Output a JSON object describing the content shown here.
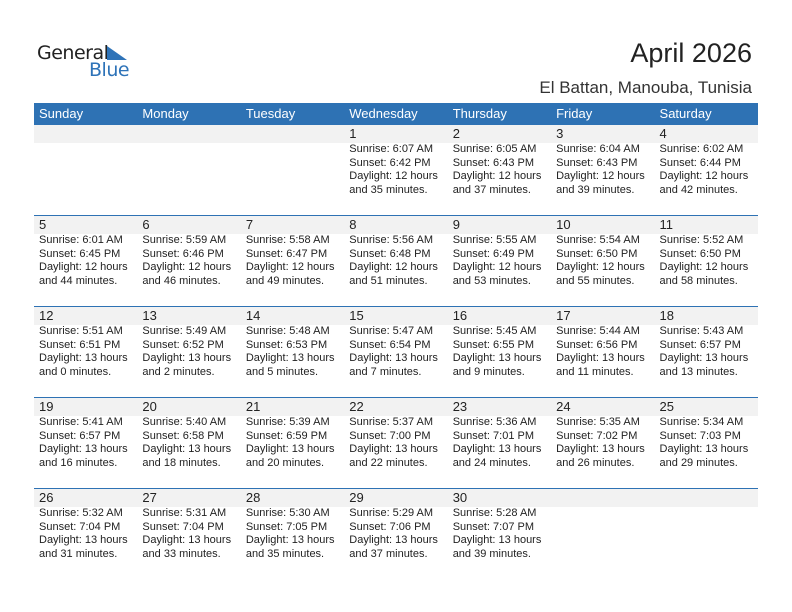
{
  "header": {
    "logo_general": "General",
    "logo_blue": "Blue",
    "title": "April 2026",
    "location": "El Battan, Manouba, Tunisia",
    "accent": "#2e72b4"
  },
  "weekdays": [
    "Sunday",
    "Monday",
    "Tuesday",
    "Wednesday",
    "Thursday",
    "Friday",
    "Saturday"
  ],
  "weeks": [
    {
      "days": [
        null,
        null,
        null,
        {
          "day": "1",
          "sunrise": "Sunrise: 6:07 AM",
          "sunset": "Sunset: 6:42 PM",
          "daylight": "Daylight: 12 hours",
          "minutes": "and 35 minutes."
        },
        {
          "day": "2",
          "sunrise": "Sunrise: 6:05 AM",
          "sunset": "Sunset: 6:43 PM",
          "daylight": "Daylight: 12 hours",
          "minutes": "and 37 minutes."
        },
        {
          "day": "3",
          "sunrise": "Sunrise: 6:04 AM",
          "sunset": "Sunset: 6:43 PM",
          "daylight": "Daylight: 12 hours",
          "minutes": "and 39 minutes."
        },
        {
          "day": "4",
          "sunrise": "Sunrise: 6:02 AM",
          "sunset": "Sunset: 6:44 PM",
          "daylight": "Daylight: 12 hours",
          "minutes": "and 42 minutes."
        }
      ]
    },
    {
      "days": [
        {
          "day": "5",
          "sunrise": "Sunrise: 6:01 AM",
          "sunset": "Sunset: 6:45 PM",
          "daylight": "Daylight: 12 hours",
          "minutes": "and 44 minutes."
        },
        {
          "day": "6",
          "sunrise": "Sunrise: 5:59 AM",
          "sunset": "Sunset: 6:46 PM",
          "daylight": "Daylight: 12 hours",
          "minutes": "and 46 minutes."
        },
        {
          "day": "7",
          "sunrise": "Sunrise: 5:58 AM",
          "sunset": "Sunset: 6:47 PM",
          "daylight": "Daylight: 12 hours",
          "minutes": "and 49 minutes."
        },
        {
          "day": "8",
          "sunrise": "Sunrise: 5:56 AM",
          "sunset": "Sunset: 6:48 PM",
          "daylight": "Daylight: 12 hours",
          "minutes": "and 51 minutes."
        },
        {
          "day": "9",
          "sunrise": "Sunrise: 5:55 AM",
          "sunset": "Sunset: 6:49 PM",
          "daylight": "Daylight: 12 hours",
          "minutes": "and 53 minutes."
        },
        {
          "day": "10",
          "sunrise": "Sunrise: 5:54 AM",
          "sunset": "Sunset: 6:50 PM",
          "daylight": "Daylight: 12 hours",
          "minutes": "and 55 minutes."
        },
        {
          "day": "11",
          "sunrise": "Sunrise: 5:52 AM",
          "sunset": "Sunset: 6:50 PM",
          "daylight": "Daylight: 12 hours",
          "minutes": "and 58 minutes."
        }
      ]
    },
    {
      "days": [
        {
          "day": "12",
          "sunrise": "Sunrise: 5:51 AM",
          "sunset": "Sunset: 6:51 PM",
          "daylight": "Daylight: 13 hours",
          "minutes": "and 0 minutes."
        },
        {
          "day": "13",
          "sunrise": "Sunrise: 5:49 AM",
          "sunset": "Sunset: 6:52 PM",
          "daylight": "Daylight: 13 hours",
          "minutes": "and 2 minutes."
        },
        {
          "day": "14",
          "sunrise": "Sunrise: 5:48 AM",
          "sunset": "Sunset: 6:53 PM",
          "daylight": "Daylight: 13 hours",
          "minutes": "and 5 minutes."
        },
        {
          "day": "15",
          "sunrise": "Sunrise: 5:47 AM",
          "sunset": "Sunset: 6:54 PM",
          "daylight": "Daylight: 13 hours",
          "minutes": "and 7 minutes."
        },
        {
          "day": "16",
          "sunrise": "Sunrise: 5:45 AM",
          "sunset": "Sunset: 6:55 PM",
          "daylight": "Daylight: 13 hours",
          "minutes": "and 9 minutes."
        },
        {
          "day": "17",
          "sunrise": "Sunrise: 5:44 AM",
          "sunset": "Sunset: 6:56 PM",
          "daylight": "Daylight: 13 hours",
          "minutes": "and 11 minutes."
        },
        {
          "day": "18",
          "sunrise": "Sunrise: 5:43 AM",
          "sunset": "Sunset: 6:57 PM",
          "daylight": "Daylight: 13 hours",
          "minutes": "and 13 minutes."
        }
      ]
    },
    {
      "days": [
        {
          "day": "19",
          "sunrise": "Sunrise: 5:41 AM",
          "sunset": "Sunset: 6:57 PM",
          "daylight": "Daylight: 13 hours",
          "minutes": "and 16 minutes."
        },
        {
          "day": "20",
          "sunrise": "Sunrise: 5:40 AM",
          "sunset": "Sunset: 6:58 PM",
          "daylight": "Daylight: 13 hours",
          "minutes": "and 18 minutes."
        },
        {
          "day": "21",
          "sunrise": "Sunrise: 5:39 AM",
          "sunset": "Sunset: 6:59 PM",
          "daylight": "Daylight: 13 hours",
          "minutes": "and 20 minutes."
        },
        {
          "day": "22",
          "sunrise": "Sunrise: 5:37 AM",
          "sunset": "Sunset: 7:00 PM",
          "daylight": "Daylight: 13 hours",
          "minutes": "and 22 minutes."
        },
        {
          "day": "23",
          "sunrise": "Sunrise: 5:36 AM",
          "sunset": "Sunset: 7:01 PM",
          "daylight": "Daylight: 13 hours",
          "minutes": "and 24 minutes."
        },
        {
          "day": "24",
          "sunrise": "Sunrise: 5:35 AM",
          "sunset": "Sunset: 7:02 PM",
          "daylight": "Daylight: 13 hours",
          "minutes": "and 26 minutes."
        },
        {
          "day": "25",
          "sunrise": "Sunrise: 5:34 AM",
          "sunset": "Sunset: 7:03 PM",
          "daylight": "Daylight: 13 hours",
          "minutes": "and 29 minutes."
        }
      ]
    },
    {
      "days": [
        {
          "day": "26",
          "sunrise": "Sunrise: 5:32 AM",
          "sunset": "Sunset: 7:04 PM",
          "daylight": "Daylight: 13 hours",
          "minutes": "and 31 minutes."
        },
        {
          "day": "27",
          "sunrise": "Sunrise: 5:31 AM",
          "sunset": "Sunset: 7:04 PM",
          "daylight": "Daylight: 13 hours",
          "minutes": "and 33 minutes."
        },
        {
          "day": "28",
          "sunrise": "Sunrise: 5:30 AM",
          "sunset": "Sunset: 7:05 PM",
          "daylight": "Daylight: 13 hours",
          "minutes": "and 35 minutes."
        },
        {
          "day": "29",
          "sunrise": "Sunrise: 5:29 AM",
          "sunset": "Sunset: 7:06 PM",
          "daylight": "Daylight: 13 hours",
          "minutes": "and 37 minutes."
        },
        {
          "day": "30",
          "sunrise": "Sunrise: 5:28 AM",
          "sunset": "Sunset: 7:07 PM",
          "daylight": "Daylight: 13 hours",
          "minutes": "and 39 minutes."
        },
        null,
        null
      ]
    }
  ]
}
